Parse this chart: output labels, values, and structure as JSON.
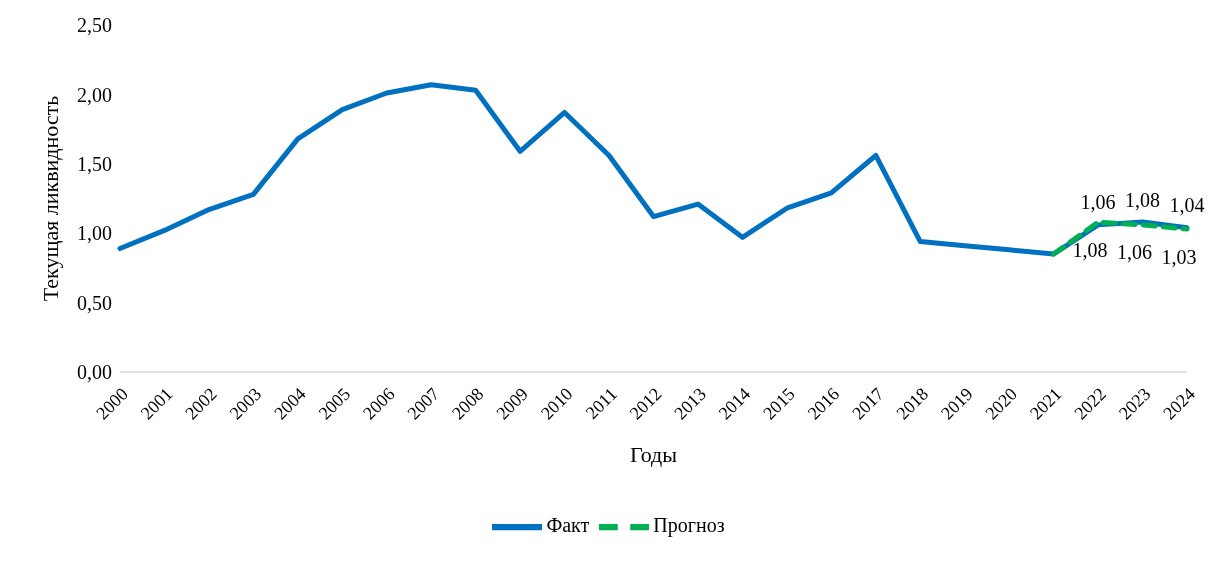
{
  "chart_data": {
    "type": "line",
    "xlabel": "Годы",
    "ylabel": "Текущая ликвидность",
    "categories": [
      "2000",
      "2001",
      "2002",
      "2003",
      "2004",
      "2005",
      "2006",
      "2007",
      "2008",
      "2009",
      "2010",
      "2011",
      "2012",
      "2013",
      "2014",
      "2015",
      "2016",
      "2017",
      "2018",
      "2019",
      "2020",
      "2021",
      "2022",
      "2023",
      "2024"
    ],
    "series": [
      {
        "name": "Факт",
        "color": "#0070c0",
        "line_style": "solid",
        "values": [
          0.89,
          1.02,
          1.17,
          1.28,
          1.68,
          1.89,
          2.01,
          2.07,
          2.03,
          1.59,
          1.87,
          1.56,
          1.12,
          1.21,
          0.97,
          1.18,
          1.29,
          1.56,
          0.94,
          0.91,
          0.88,
          0.85,
          1.06,
          1.08,
          1.04
        ],
        "value_labels": [
          null,
          null,
          null,
          null,
          null,
          null,
          null,
          null,
          null,
          null,
          null,
          null,
          null,
          null,
          null,
          null,
          null,
          null,
          null,
          null,
          null,
          null,
          "1,06",
          "1,08",
          "1,04"
        ]
      },
      {
        "name": "Прогноз",
        "color": "#00b050",
        "line_style": "dashed",
        "values": [
          null,
          null,
          null,
          null,
          null,
          null,
          null,
          null,
          null,
          null,
          null,
          null,
          null,
          null,
          null,
          null,
          null,
          null,
          null,
          null,
          null,
          0.85,
          1.08,
          1.06,
          1.03
        ],
        "value_labels": [
          null,
          null,
          null,
          null,
          null,
          null,
          null,
          null,
          null,
          null,
          null,
          null,
          null,
          null,
          null,
          null,
          null,
          null,
          null,
          null,
          null,
          null,
          "1,08",
          "1,06",
          "1,03"
        ]
      }
    ],
    "ylim": [
      0,
      2.5
    ],
    "yticks": [
      {
        "value": 0,
        "label": "0,00"
      },
      {
        "value": 0.5,
        "label": "0,50"
      },
      {
        "value": 1,
        "label": "1,00"
      },
      {
        "value": 1.5,
        "label": "1,50"
      },
      {
        "value": 2,
        "label": "2,00"
      },
      {
        "value": 2.5,
        "label": "2,50"
      }
    ],
    "grid": false,
    "legend": "bottom",
    "marker": "none"
  }
}
